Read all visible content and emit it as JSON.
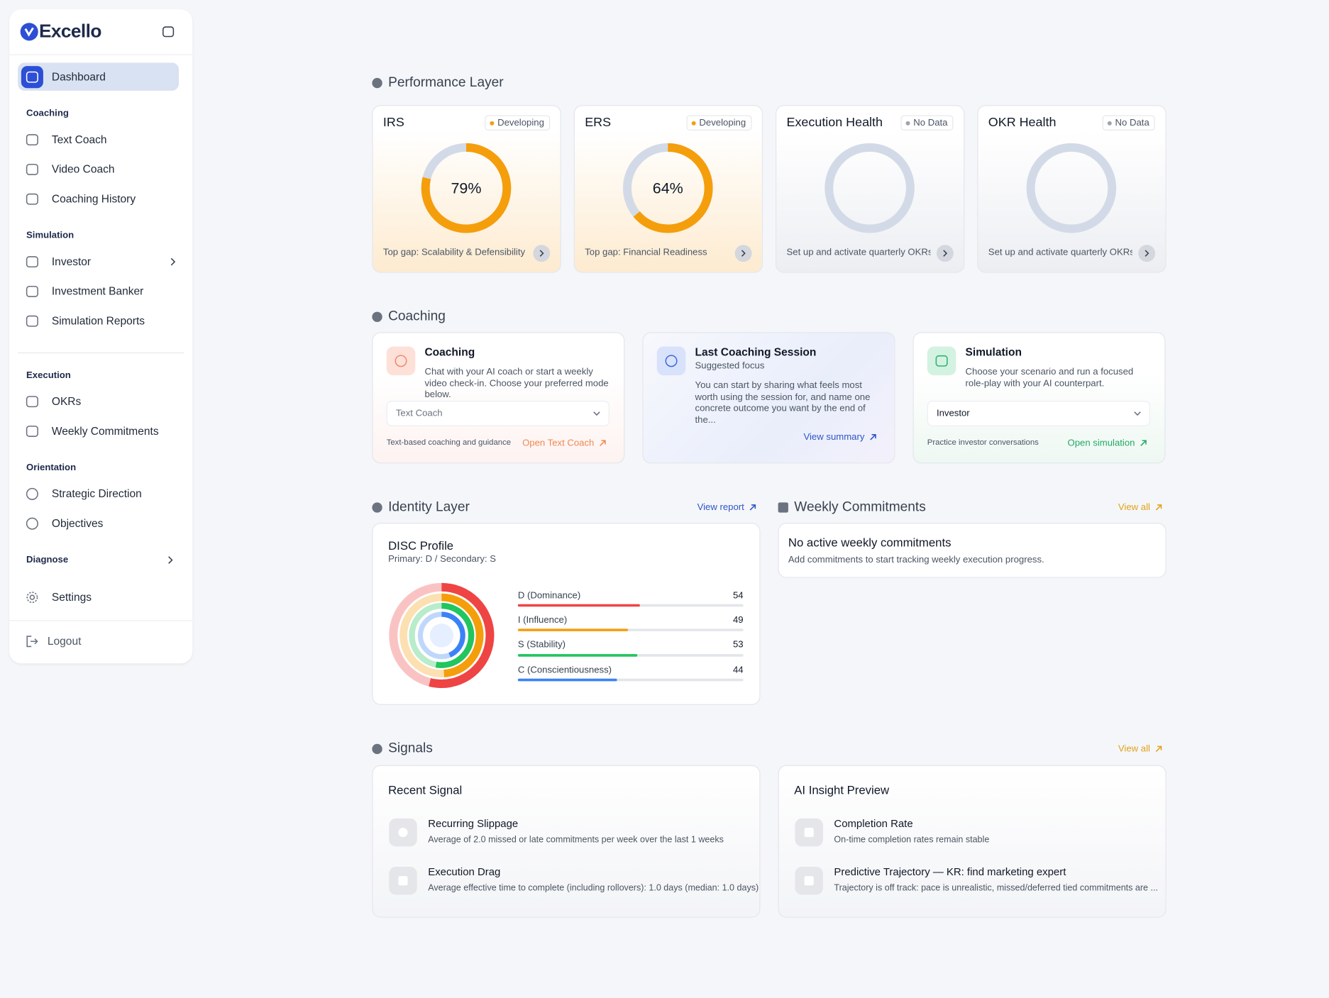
{
  "sidebar": {
    "brand": "Excello",
    "active": "Dashboard",
    "groups": [
      {
        "heading": "Coaching",
        "items": [
          "Text Coach",
          "Video Coach",
          "Coaching History"
        ]
      },
      {
        "heading": "Simulation",
        "items": [
          "Investor",
          "Investment Banker",
          "Simulation Reports"
        ]
      },
      {
        "heading": "Execution",
        "items": [
          "OKRs",
          "Weekly Commitments"
        ]
      },
      {
        "heading": "Orientation",
        "items": [
          "Strategic Direction",
          "Objectives"
        ]
      }
    ],
    "diagnose": "Diagnose",
    "settings": "Settings",
    "logout": "Logout"
  },
  "performance": {
    "title": "Performance Layer",
    "scale": [
      0,
      100
    ],
    "color": "#f59e0b",
    "cards": [
      {
        "name": "IRS",
        "status": "Developing",
        "score": {
          "value": 79,
          "label": "79%"
        },
        "footer": "Top gap: Scalability & Defensibility"
      },
      {
        "name": "ERS",
        "status": "Developing",
        "score": {
          "value": 64,
          "label": "64%"
        },
        "footer": "Top gap: Financial Readiness"
      },
      {
        "name": "Execution Health",
        "status": "No Data",
        "footer": "Set up and activate quarterly OKRs..."
      },
      {
        "name": "OKR Health",
        "status": "No Data",
        "footer": "Set up and activate quarterly OKRs..."
      }
    ]
  },
  "coaching": {
    "title": "Coaching",
    "cards": [
      {
        "title": "Coaching",
        "text": "Chat with your AI coach or start a weekly video check-in. Choose your preferred mode below.",
        "select": "Text Coach",
        "note": "Text-based coaching and guidance",
        "link": "Open Text Coach"
      },
      {
        "title": "Last Coaching Session",
        "subtitle": "Suggested focus",
        "text": "You can start by sharing what feels most worth using the session for, and name one concrete outcome you want by the end of the...",
        "link": "View summary"
      },
      {
        "title": "Simulation",
        "text": "Choose your scenario and run a focused role-play with your AI counterpart.",
        "select": "Investor",
        "note": "Practice investor conversations",
        "link": "Open simulation"
      }
    ]
  },
  "identity": {
    "title": "Identity Layer",
    "link": "View report",
    "disc": {
      "title": "DISC Profile",
      "subtitle": "Primary: D / Secondary: S",
      "scale": [
        0,
        100
      ],
      "traits": [
        {
          "name": "D (Dominance)",
          "value": 54,
          "color": "#ef4444"
        },
        {
          "name": "I (Influence)",
          "value": 49,
          "color": "#f59e0b"
        },
        {
          "name": "S (Stability)",
          "value": 53,
          "color": "#22c55e"
        },
        {
          "name": "C (Conscientiousness)",
          "value": 44,
          "color": "#3b82f6"
        }
      ]
    }
  },
  "weekly": {
    "title": "Weekly Commitments",
    "link": "View all",
    "empty_title": "No active weekly commitments",
    "empty_text": "Add commitments to start tracking weekly execution progress."
  },
  "signals": {
    "title": "Signals",
    "link": "View all",
    "panels": [
      {
        "title": "Recent Signal",
        "items": [
          {
            "title": "Recurring Slippage",
            "text": "Average of 2.0 missed or late commitments per week over the last 1 weeks"
          },
          {
            "title": "Execution Drag",
            "text": "Average effective time to complete (including rollovers): 1.0 days (median: 1.0 days)"
          }
        ]
      },
      {
        "title": "AI Insight Preview",
        "items": [
          {
            "title": "Completion Rate",
            "text": "On-time completion rates remain stable"
          },
          {
            "title": "Predictive Trajectory — KR: find marketing expert",
            "text": "Trajectory is off track: pace is unrealistic, missed/deferred tied commitments are ..."
          }
        ]
      }
    ]
  }
}
